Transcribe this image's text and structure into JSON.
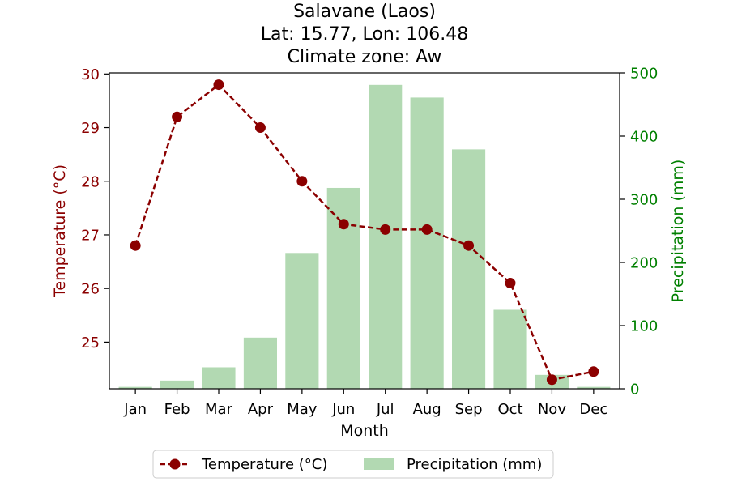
{
  "chart_data": {
    "type": "bar+line",
    "title_lines": [
      "Salavane (Laos)",
      "Lat: 15.77, Lon: 106.48",
      "Climate zone: Aw"
    ],
    "xlabel": "Month",
    "ylabel_left": "Temperature (°C)",
    "ylabel_right": "Precipitation (mm)",
    "categories": [
      "Jan",
      "Feb",
      "Mar",
      "Apr",
      "May",
      "Jun",
      "Jul",
      "Aug",
      "Sep",
      "Oct",
      "Nov",
      "Dec"
    ],
    "temperature": {
      "name": "Temperature (°C)",
      "values": [
        26.8,
        29.2,
        29.8,
        29.0,
        28.0,
        27.2,
        27.1,
        27.1,
        26.8,
        26.1,
        24.3,
        24.45
      ],
      "ylim": [
        24.13,
        30.02
      ],
      "ticks": [
        25,
        26,
        27,
        28,
        29,
        30
      ]
    },
    "precipitation": {
      "name": "Precipitation (mm)",
      "values": [
        3,
        13,
        34,
        81,
        215,
        318,
        481,
        461,
        379,
        125,
        22,
        3
      ],
      "ylim": [
        0,
        500
      ],
      "ticks": [
        0,
        100,
        200,
        300,
        400,
        500
      ]
    },
    "legend_position": "bottom-center",
    "colors": {
      "temperature": "#8b0000",
      "temperature_axis": "#8b0000",
      "precipitation": "#b2d9b2",
      "precipitation_axis": "#008000"
    }
  }
}
